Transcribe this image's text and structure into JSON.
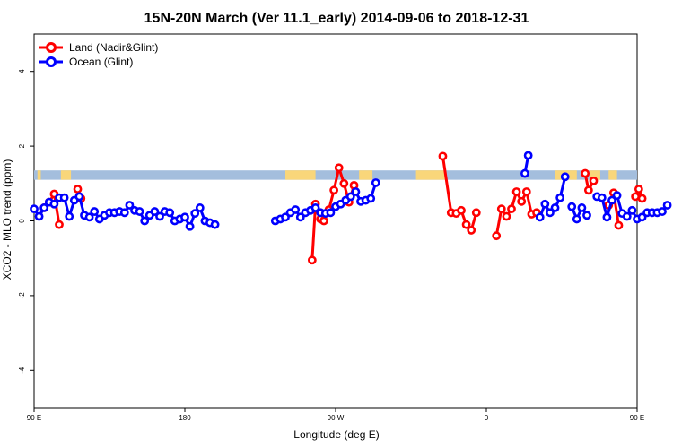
{
  "chart_data": {
    "type": "line",
    "title": "15N-20N March (Ver 11.1_early)   2014-09-06 to 2018-12-31",
    "xlabel": "Longitude (deg E)",
    "ylabel": "XCO2 - MLO trend (ppm)",
    "xlim": [
      90,
      450
    ],
    "ylim": [
      -5,
      5
    ],
    "x_ticks": [
      {
        "value": 90,
        "label": "90 E"
      },
      {
        "value": 180,
        "label": "180"
      },
      {
        "value": 270,
        "label": "90 W"
      },
      {
        "value": 360,
        "label": "0"
      },
      {
        "value": 450,
        "label": "90 E"
      },
      {
        "value": 540,
        "label": "180"
      }
    ],
    "y_ticks": [
      {
        "value": -4,
        "label": "-4"
      },
      {
        "value": -2,
        "label": "-2"
      },
      {
        "value": 0,
        "label": "0"
      },
      {
        "value": 2,
        "label": "2"
      },
      {
        "value": 4,
        "label": "4"
      }
    ],
    "legend": {
      "position": "top-left"
    },
    "colors": {
      "land": "#ff0000",
      "ocean": "#0000ff",
      "ocean_band": "#a4bedd",
      "land_band": "#f9d67a"
    },
    "series": [
      {
        "name": "Land (Nadir&Glint)",
        "color": "#ff0000",
        "segments": [
          [
            [
              96,
              0.35
            ],
            [
              99,
              0.5
            ],
            [
              102,
              0.72
            ],
            [
              105,
              -0.1
            ]
          ],
          [
            [
              116,
              0.85
            ],
            [
              118,
              0.6
            ]
          ],
          [
            [
              256,
              -1.05
            ],
            [
              258,
              0.45
            ],
            [
              261,
              0.05
            ],
            [
              263,
              0.0
            ],
            [
              266,
              0.3
            ],
            [
              269,
              0.82
            ],
            [
              272,
              1.42
            ],
            [
              275,
              1.0
            ],
            [
              278,
              0.5
            ],
            [
              281,
              0.95
            ]
          ],
          [
            [
              334,
              1.73
            ],
            [
              339,
              0.22
            ],
            [
              342,
              0.2
            ],
            [
              345,
              0.28
            ],
            [
              348,
              -0.1
            ],
            [
              351,
              -0.25
            ],
            [
              354,
              0.22
            ]
          ],
          [
            [
              366,
              -0.4
            ],
            [
              369,
              0.32
            ],
            [
              372,
              0.12
            ],
            [
              375,
              0.32
            ],
            [
              378,
              0.78
            ],
            [
              381,
              0.52
            ],
            [
              384,
              0.78
            ],
            [
              387,
              0.18
            ],
            [
              390,
              0.22
            ]
          ],
          [
            [
              419,
              1.27
            ],
            [
              421,
              0.82
            ],
            [
              424,
              1.07
            ]
          ],
          [
            [
              433,
              0.42
            ],
            [
              436,
              0.75
            ],
            [
              439,
              -0.12
            ]
          ],
          [
            [
              449,
              0.65
            ],
            [
              451,
              0.85
            ],
            [
              453,
              0.6
            ]
          ]
        ]
      },
      {
        "name": "Ocean (Glint)",
        "color": "#0000ff",
        "segments": [
          [
            [
              90,
              0.32
            ],
            [
              93,
              0.12
            ],
            [
              96,
              0.35
            ],
            [
              99,
              0.5
            ],
            [
              102,
              0.45
            ],
            [
              105,
              0.62
            ],
            [
              108,
              0.62
            ],
            [
              111,
              0.12
            ],
            [
              114,
              0.55
            ],
            [
              117,
              0.65
            ],
            [
              120,
              0.15
            ],
            [
              123,
              0.1
            ],
            [
              126,
              0.25
            ],
            [
              129,
              0.05
            ],
            [
              132,
              0.15
            ],
            [
              135,
              0.22
            ],
            [
              138,
              0.22
            ],
            [
              141,
              0.25
            ],
            [
              144,
              0.22
            ],
            [
              147,
              0.42
            ],
            [
              150,
              0.28
            ],
            [
              153,
              0.25
            ],
            [
              156,
              0.0
            ],
            [
              159,
              0.15
            ],
            [
              162,
              0.25
            ],
            [
              165,
              0.12
            ],
            [
              168,
              0.25
            ],
            [
              171,
              0.22
            ],
            [
              174,
              0.0
            ],
            [
              177,
              0.05
            ],
            [
              180,
              0.1
            ],
            [
              183,
              -0.15
            ],
            [
              186,
              0.2
            ],
            [
              189,
              0.35
            ],
            [
              192,
              0.0
            ],
            [
              195,
              -0.05
            ],
            [
              198,
              -0.1
            ]
          ],
          [
            [
              234,
              0.0
            ],
            [
              237,
              0.05
            ],
            [
              240,
              0.1
            ],
            [
              243,
              0.22
            ],
            [
              246,
              0.3
            ],
            [
              249,
              0.1
            ],
            [
              252,
              0.22
            ],
            [
              255,
              0.28
            ],
            [
              258,
              0.35
            ],
            [
              261,
              0.22
            ],
            [
              264,
              0.2
            ],
            [
              267,
              0.22
            ],
            [
              270,
              0.38
            ],
            [
              273,
              0.45
            ],
            [
              276,
              0.55
            ],
            [
              279,
              0.65
            ],
            [
              282,
              0.78
            ],
            [
              285,
              0.52
            ],
            [
              288,
              0.55
            ],
            [
              291,
              0.6
            ],
            [
              294,
              1.02
            ]
          ],
          [
            [
              383,
              1.27
            ],
            [
              385,
              1.75
            ]
          ],
          [
            [
              392,
              0.1
            ],
            [
              395,
              0.45
            ],
            [
              398,
              0.22
            ],
            [
              401,
              0.35
            ],
            [
              404,
              0.62
            ],
            [
              407,
              1.18
            ]
          ],
          [
            [
              411,
              0.38
            ],
            [
              414,
              0.05
            ],
            [
              417,
              0.35
            ],
            [
              420,
              0.15
            ]
          ],
          [
            [
              426,
              0.65
            ],
            [
              429,
              0.62
            ],
            [
              432,
              0.1
            ],
            [
              435,
              0.55
            ],
            [
              438,
              0.68
            ],
            [
              441,
              0.2
            ],
            [
              444,
              0.12
            ],
            [
              447,
              0.28
            ],
            [
              450,
              0.05
            ],
            [
              453,
              0.1
            ],
            [
              456,
              0.22
            ],
            [
              459,
              0.22
            ],
            [
              462,
              0.22
            ],
            [
              465,
              0.25
            ],
            [
              468,
              0.42
            ]
          ]
        ]
      }
    ],
    "surface_band": {
      "y_range": [
        1.1,
        1.35
      ],
      "land_intervals": [
        [
          92,
          94
        ],
        [
          106,
          112
        ],
        [
          240,
          258
        ],
        [
          284,
          292
        ],
        [
          318,
          336
        ],
        [
          401,
          414
        ],
        [
          422,
          428
        ],
        [
          433,
          438
        ]
      ]
    }
  }
}
